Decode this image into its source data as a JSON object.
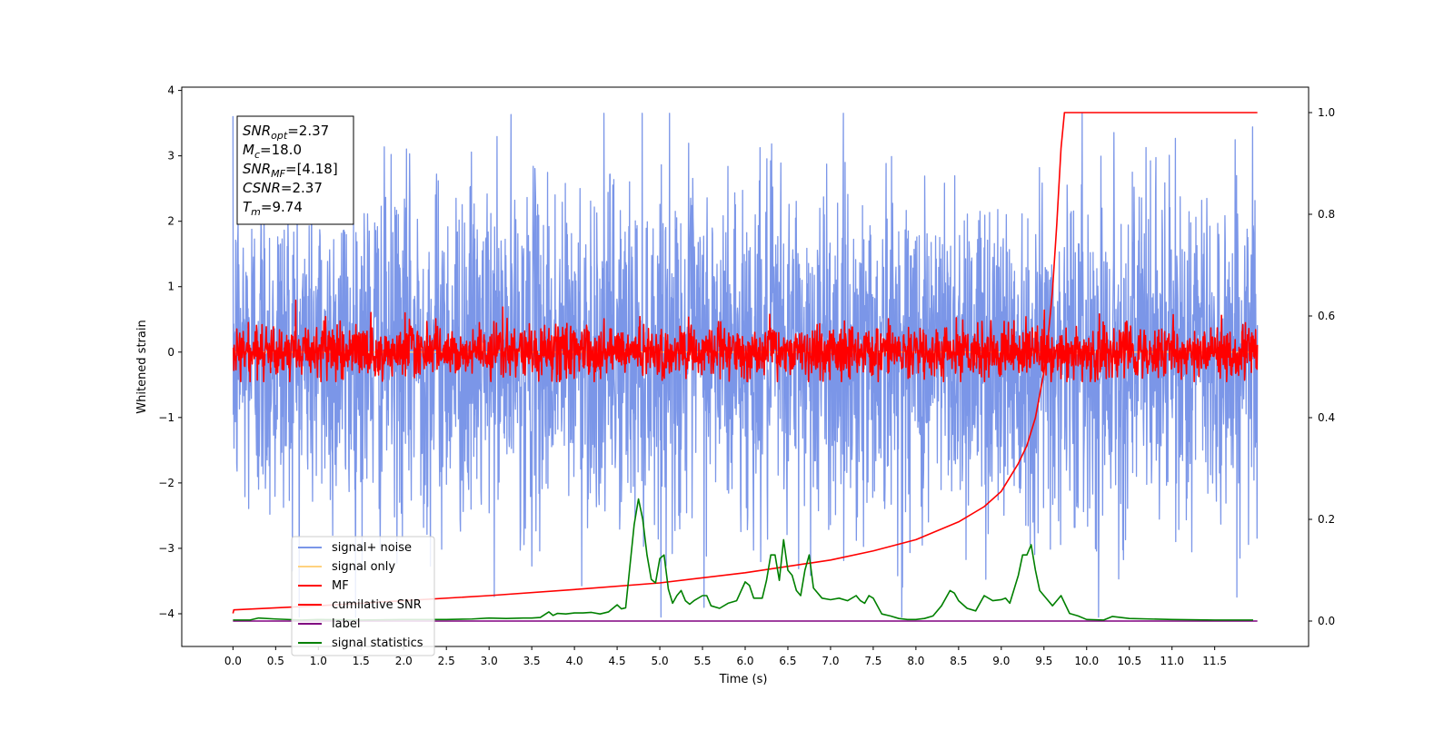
{
  "chart_data": {
    "type": "line",
    "xlabel": "Time (s)",
    "ylabel": "Whitened strain",
    "xlim": [
      -0.6,
      12.6
    ],
    "ylim_left": [
      -4.5,
      4.05
    ],
    "ylim_right": [
      -0.05,
      1.05
    ],
    "x_ticks": [
      0.0,
      0.5,
      1.0,
      1.5,
      2.0,
      2.5,
      3.0,
      3.5,
      4.0,
      4.5,
      5.0,
      5.5,
      6.0,
      6.5,
      7.0,
      7.5,
      8.0,
      8.5,
      9.0,
      9.5,
      10.0,
      10.5,
      11.0,
      11.5
    ],
    "x_tick_labels": [
      "0.0",
      "0.5",
      "1.0",
      "1.5",
      "2.0",
      "2.5",
      "3.0",
      "3.5",
      "4.0",
      "4.5",
      "5.0",
      "5.5",
      "6.0",
      "6.5",
      "7.0",
      "7.5",
      "8.0",
      "8.5",
      "9.0",
      "9.5",
      "10.0",
      "10.5",
      "11.0",
      "11.5"
    ],
    "y_ticks_left": [
      4,
      3,
      2,
      1,
      0,
      -1,
      -2,
      -3,
      -4
    ],
    "y_tick_labels_left": [
      "4",
      "3",
      "2",
      "1",
      "0",
      "−1",
      "−2",
      "−3",
      "−4"
    ],
    "y_ticks_right": [
      1.0,
      0.8,
      0.6,
      0.4,
      0.2,
      0.0
    ],
    "y_tick_labels_right": [
      "1.0",
      "0.8",
      "0.6",
      "0.4",
      "0.2",
      "0.0"
    ],
    "grid": false,
    "legend_position": "lower-left",
    "annotation_box": {
      "position": "top-left",
      "lines": [
        {
          "sym": "SNR",
          "sub": "opt",
          "rest": "=2.37"
        },
        {
          "sym": "M",
          "sub": "c",
          "rest": "=18.0"
        },
        {
          "sym": "SNR",
          "sub": "MF",
          "rest": "=[4.18]"
        },
        {
          "sym": "CSNR",
          "sub": "",
          "rest": "=2.37"
        },
        {
          "sym": "T",
          "sub": "m",
          "rest": "=9.74"
        }
      ]
    },
    "series": [
      {
        "name": "signal+ noise",
        "axis": "left",
        "color": "#7b96e8",
        "description_values": {
          "x_range": [
            0.0,
            12.0
          ],
          "typical_amplitude": 1.3,
          "peak_positive": 3.65,
          "peak_negative": -4.05
        }
      },
      {
        "name": "signal only",
        "axis": "left",
        "color": "#ffd27f",
        "x": [
          0.0,
          12.0
        ],
        "y": [
          0.0,
          0.0
        ]
      },
      {
        "name": "MF",
        "axis": "left",
        "color": "#ff0000",
        "description_values": {
          "x_range": [
            0.0,
            12.0
          ],
          "typical_amplitude": 0.3,
          "peak_positive": 1.0,
          "peak_negative": -0.45
        }
      },
      {
        "name": "cumilative SNR",
        "axis": "right",
        "color": "#ff0000",
        "x": [
          0.0,
          0.01,
          1.0,
          2.0,
          3.0,
          4.0,
          5.0,
          6.0,
          7.0,
          7.5,
          8.0,
          8.5,
          8.8,
          9.0,
          9.2,
          9.3,
          9.4,
          9.5,
          9.55,
          9.6,
          9.65,
          9.7,
          9.74,
          12.0
        ],
        "y": [
          0.015,
          0.022,
          0.03,
          0.04,
          0.05,
          0.062,
          0.075,
          0.095,
          0.12,
          0.138,
          0.16,
          0.195,
          0.225,
          0.255,
          0.31,
          0.345,
          0.4,
          0.49,
          0.56,
          0.65,
          0.78,
          0.93,
          1.0,
          1.0
        ]
      },
      {
        "name": "label",
        "axis": "right",
        "color": "#800080",
        "x": [
          0.0,
          12.0
        ],
        "y": [
          0.0,
          0.0
        ]
      },
      {
        "name": "signal statistics",
        "axis": "right",
        "color": "#008000",
        "x": [
          0.0,
          0.2,
          0.3,
          0.5,
          0.8,
          1.0,
          1.5,
          2.0,
          2.5,
          2.8,
          3.0,
          3.2,
          3.4,
          3.5,
          3.6,
          3.7,
          3.75,
          3.8,
          3.9,
          4.0,
          4.1,
          4.2,
          4.3,
          4.4,
          4.5,
          4.55,
          4.6,
          4.7,
          4.75,
          4.8,
          4.85,
          4.9,
          4.95,
          5.0,
          5.05,
          5.1,
          5.15,
          5.2,
          5.25,
          5.3,
          5.35,
          5.4,
          5.5,
          5.55,
          5.6,
          5.7,
          5.8,
          5.9,
          6.0,
          6.05,
          6.1,
          6.2,
          6.25,
          6.3,
          6.35,
          6.4,
          6.45,
          6.5,
          6.55,
          6.6,
          6.65,
          6.7,
          6.75,
          6.8,
          6.9,
          7.0,
          7.1,
          7.2,
          7.3,
          7.35,
          7.4,
          7.45,
          7.5,
          7.6,
          7.7,
          7.8,
          7.9,
          8.0,
          8.1,
          8.2,
          8.3,
          8.4,
          8.45,
          8.5,
          8.6,
          8.7,
          8.8,
          8.9,
          9.0,
          9.05,
          9.1,
          9.2,
          9.25,
          9.3,
          9.35,
          9.4,
          9.45,
          9.5,
          9.6,
          9.65,
          9.7,
          9.8,
          9.9,
          10.0,
          10.2,
          10.3,
          10.5,
          11.0,
          11.5,
          11.95
        ],
        "y": [
          0.002,
          0.002,
          0.006,
          0.004,
          0.002,
          0.003,
          0.002,
          0.003,
          0.003,
          0.004,
          0.006,
          0.005,
          0.006,
          0.006,
          0.007,
          0.018,
          0.011,
          0.015,
          0.014,
          0.016,
          0.016,
          0.017,
          0.014,
          0.018,
          0.032,
          0.024,
          0.026,
          0.19,
          0.24,
          0.2,
          0.13,
          0.082,
          0.075,
          0.123,
          0.13,
          0.063,
          0.035,
          0.05,
          0.06,
          0.04,
          0.033,
          0.04,
          0.05,
          0.05,
          0.03,
          0.025,
          0.035,
          0.04,
          0.077,
          0.07,
          0.045,
          0.045,
          0.08,
          0.13,
          0.13,
          0.08,
          0.16,
          0.1,
          0.09,
          0.06,
          0.05,
          0.1,
          0.13,
          0.065,
          0.045,
          0.042,
          0.045,
          0.04,
          0.05,
          0.04,
          0.035,
          0.05,
          0.045,
          0.014,
          0.01,
          0.005,
          0.003,
          0.003,
          0.005,
          0.01,
          0.03,
          0.06,
          0.055,
          0.04,
          0.025,
          0.02,
          0.05,
          0.04,
          0.042,
          0.045,
          0.035,
          0.09,
          0.13,
          0.13,
          0.15,
          0.1,
          0.06,
          0.05,
          0.03,
          0.04,
          0.05,
          0.015,
          0.01,
          0.003,
          0.002,
          0.009,
          0.005,
          0.003,
          0.002,
          0.002
        ]
      }
    ]
  }
}
